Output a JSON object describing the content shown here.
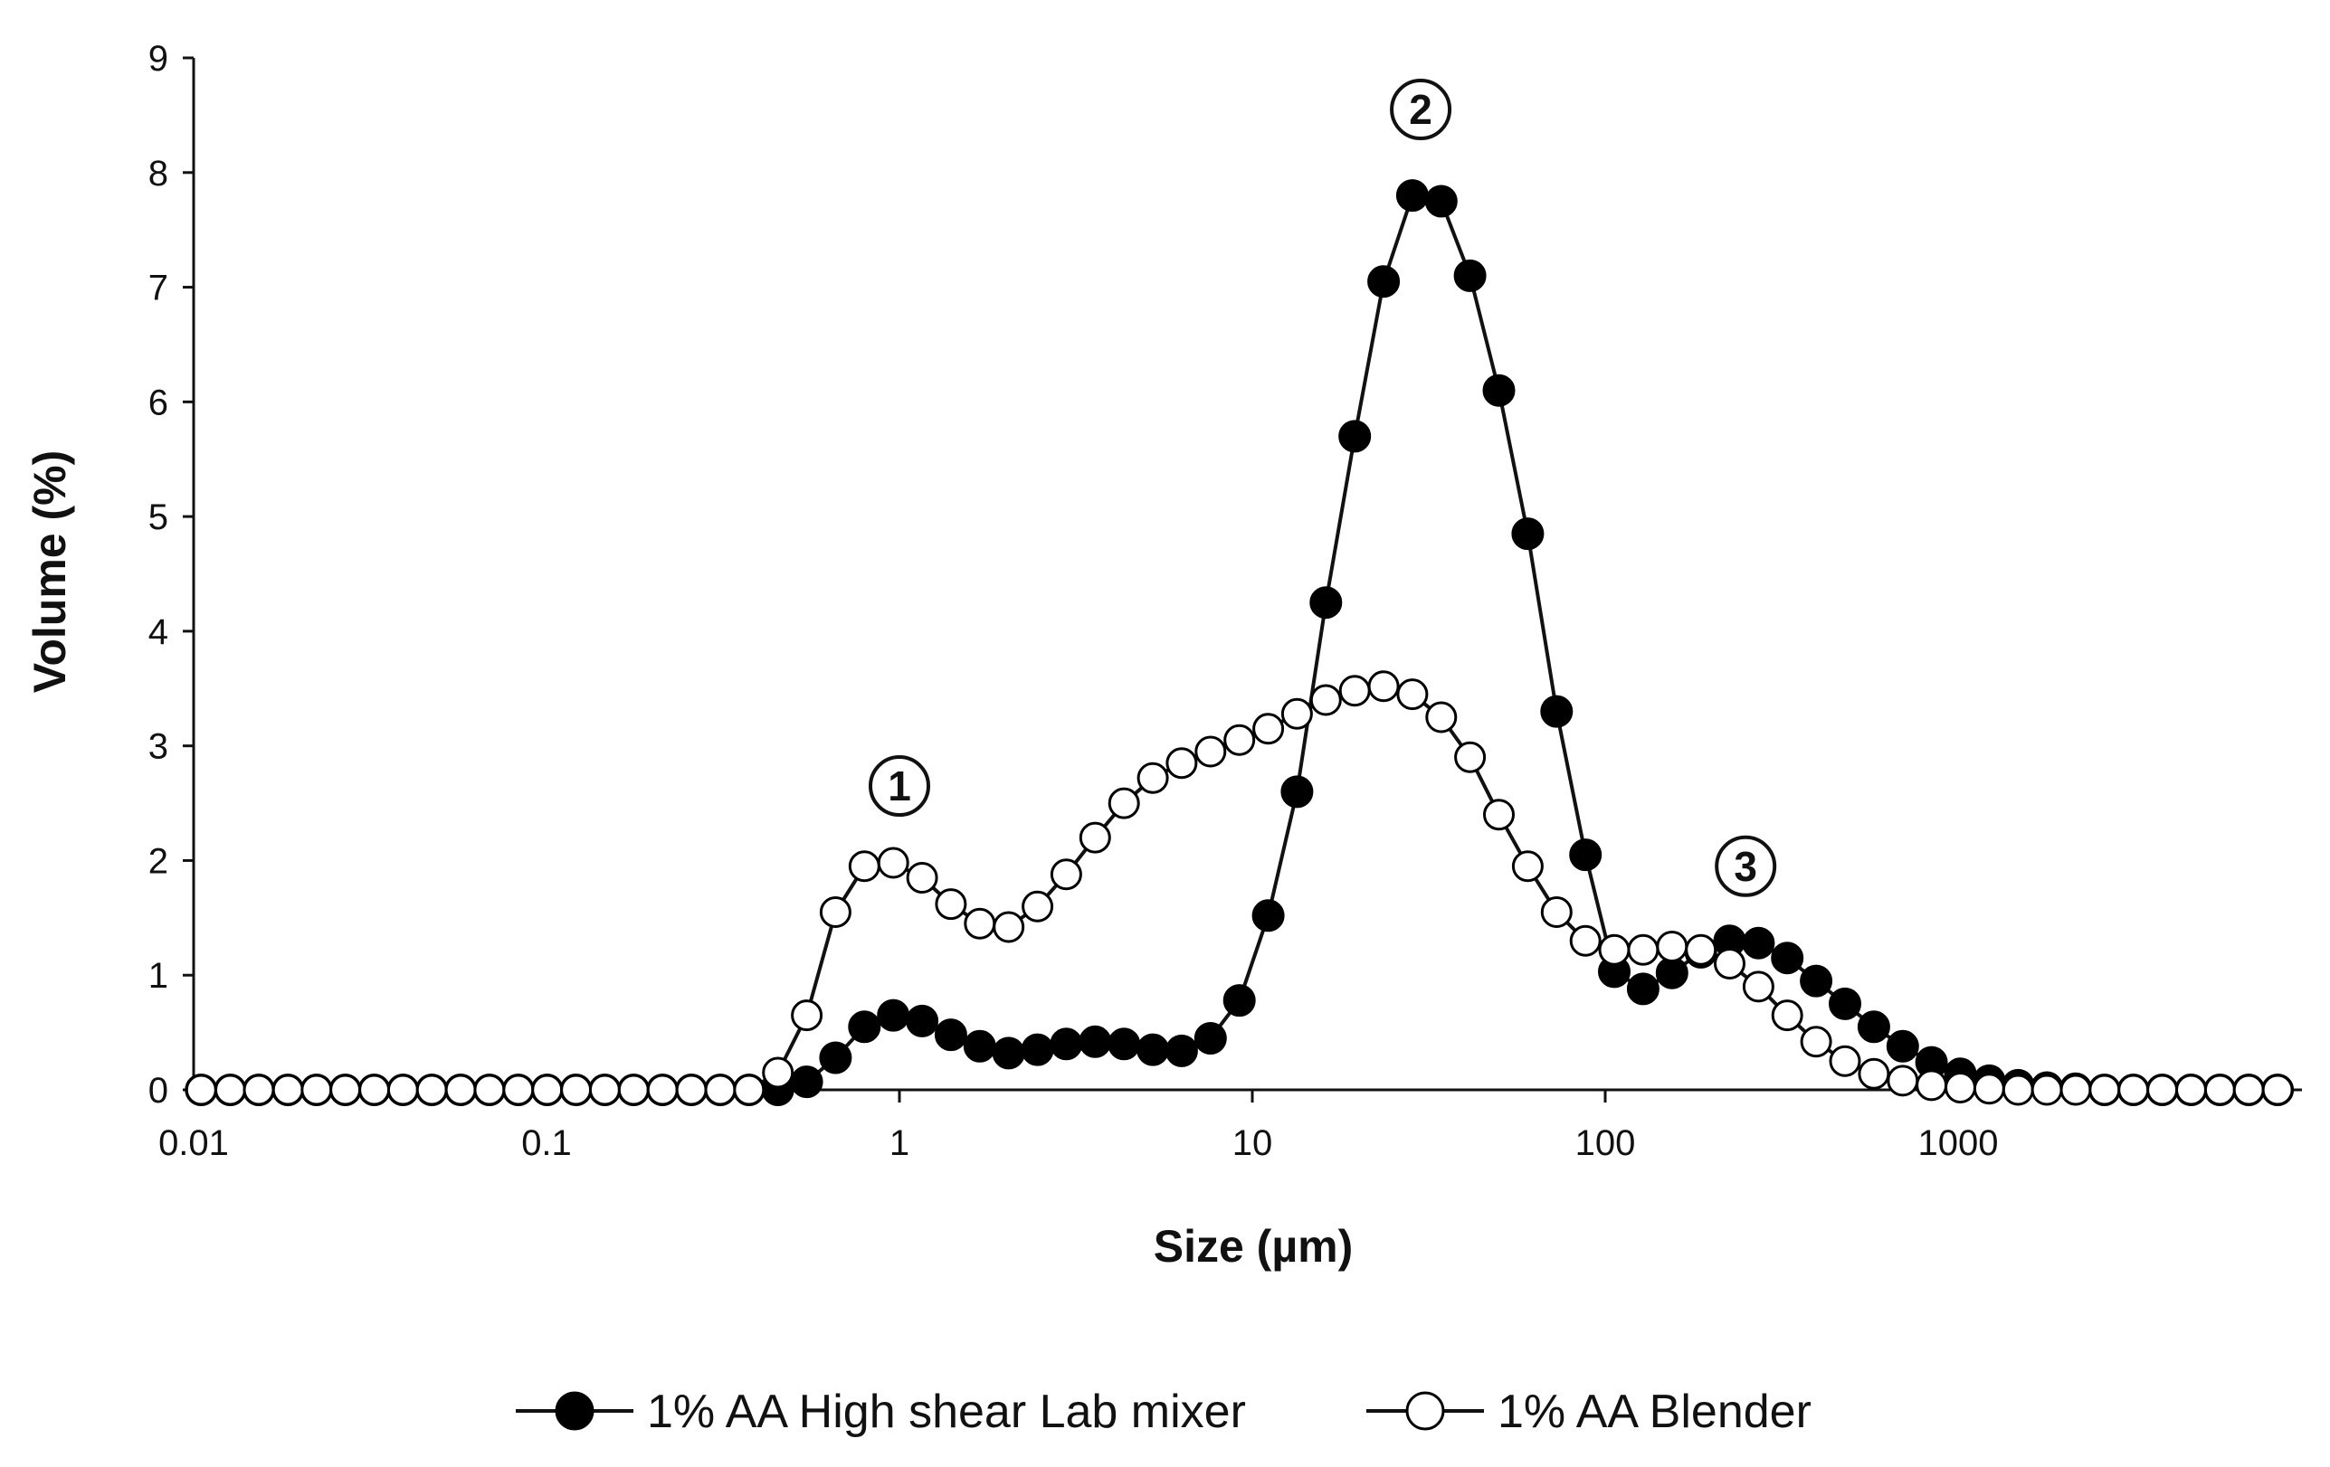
{
  "chart_data": {
    "type": "line",
    "xscale": "log",
    "xlabel": "Size (µm)",
    "ylabel": "Volume (%)",
    "xlim": [
      0.01,
      10000
    ],
    "ylim": [
      0,
      9
    ],
    "x_ticks": [
      0.01,
      0.1,
      1,
      10,
      100,
      1000
    ],
    "x_tick_labels": [
      "0.01",
      "0.1",
      "1",
      "10",
      "100",
      "1000"
    ],
    "y_ticks": [
      0,
      1,
      2,
      3,
      4,
      5,
      6,
      7,
      8,
      9
    ],
    "y_tick_labels": [
      "0",
      "1",
      "2",
      "3",
      "4",
      "5",
      "6",
      "7",
      "8",
      "9"
    ],
    "grid": false,
    "legend_position": "bottom",
    "annotations": [
      {
        "text": "1",
        "x": 1.0,
        "y": 2.65
      },
      {
        "text": "2",
        "x": 30.0,
        "y": 8.55
      },
      {
        "text": "3",
        "x": 250.0,
        "y": 1.95
      }
    ],
    "series": [
      {
        "name": "1% AA High shear Lab mixer",
        "marker": "filled-circle",
        "x": [
          0.0105,
          0.0127,
          0.0153,
          0.0185,
          0.0223,
          0.0269,
          0.0325,
          0.0392,
          0.0473,
          0.0571,
          0.0689,
          0.0832,
          0.1004,
          0.1212,
          0.1463,
          0.1766,
          0.2132,
          0.2573,
          0.3106,
          0.3749,
          0.4525,
          0.5462,
          0.6593,
          0.7958,
          0.9606,
          1.1595,
          1.3996,
          1.6894,
          2.0392,
          2.4614,
          2.9711,
          3.5863,
          4.3288,
          5.2251,
          6.307,
          7.6128,
          9.1891,
          11.092,
          13.389,
          16.16,
          19.51,
          23.55,
          28.42,
          34.3,
          41.4,
          49.98,
          60.33,
          72.82,
          87.9,
          106.1,
          128.1,
          154.6,
          186.6,
          225.2,
          271.8,
          328.1,
          396.1,
          478.1,
          577.1,
          696.6,
          840.8,
          1015,
          1225,
          1479,
          1785,
          2154,
          2600,
          3139,
          3789,
          4573,
          5520,
          6663,
          8043
        ],
        "y": [
          0,
          0,
          0,
          0,
          0,
          0,
          0,
          0,
          0,
          0,
          0,
          0,
          0,
          0,
          0,
          0,
          0,
          0,
          0,
          0,
          0,
          0.07,
          0.28,
          0.55,
          0.65,
          0.6,
          0.48,
          0.38,
          0.32,
          0.35,
          0.4,
          0.42,
          0.4,
          0.35,
          0.34,
          0.45,
          0.78,
          1.52,
          2.6,
          4.25,
          5.7,
          7.05,
          7.8,
          7.75,
          7.1,
          6.1,
          4.85,
          3.3,
          2.05,
          1.03,
          0.88,
          1.02,
          1.2,
          1.3,
          1.28,
          1.15,
          0.95,
          0.75,
          0.55,
          0.38,
          0.24,
          0.14,
          0.08,
          0.04,
          0.02,
          0.01,
          0,
          0,
          0,
          0,
          0,
          0,
          0
        ]
      },
      {
        "name": "1% AA Blender",
        "marker": "open-circle",
        "x": [
          0.0105,
          0.0127,
          0.0153,
          0.0185,
          0.0223,
          0.0269,
          0.0325,
          0.0392,
          0.0473,
          0.0571,
          0.0689,
          0.0832,
          0.1004,
          0.1212,
          0.1463,
          0.1766,
          0.2132,
          0.2573,
          0.3106,
          0.3749,
          0.4525,
          0.5462,
          0.6593,
          0.7958,
          0.9606,
          1.1595,
          1.3996,
          1.6894,
          2.0392,
          2.4614,
          2.9711,
          3.5863,
          4.3288,
          5.2251,
          6.307,
          7.6128,
          9.1891,
          11.092,
          13.389,
          16.16,
          19.51,
          23.55,
          28.42,
          34.3,
          41.4,
          49.98,
          60.33,
          72.82,
          87.9,
          106.1,
          128.1,
          154.6,
          186.6,
          225.2,
          271.8,
          328.1,
          396.1,
          478.1,
          577.1,
          696.6,
          840.8,
          1015,
          1225,
          1479,
          1785,
          2154,
          2600,
          3139,
          3789,
          4573,
          5520,
          6663,
          8043
        ],
        "y": [
          0,
          0,
          0,
          0,
          0,
          0,
          0,
          0,
          0,
          0,
          0,
          0,
          0,
          0,
          0,
          0,
          0,
          0,
          0,
          0,
          0.15,
          0.65,
          1.55,
          1.95,
          1.98,
          1.85,
          1.62,
          1.45,
          1.42,
          1.6,
          1.88,
          2.2,
          2.5,
          2.72,
          2.85,
          2.95,
          3.05,
          3.15,
          3.28,
          3.4,
          3.48,
          3.52,
          3.45,
          3.25,
          2.9,
          2.4,
          1.95,
          1.55,
          1.3,
          1.22,
          1.22,
          1.25,
          1.22,
          1.1,
          0.9,
          0.65,
          0.42,
          0.25,
          0.14,
          0.08,
          0.04,
          0.02,
          0.01,
          0,
          0,
          0,
          0,
          0,
          0,
          0,
          0,
          0,
          0
        ]
      }
    ]
  }
}
